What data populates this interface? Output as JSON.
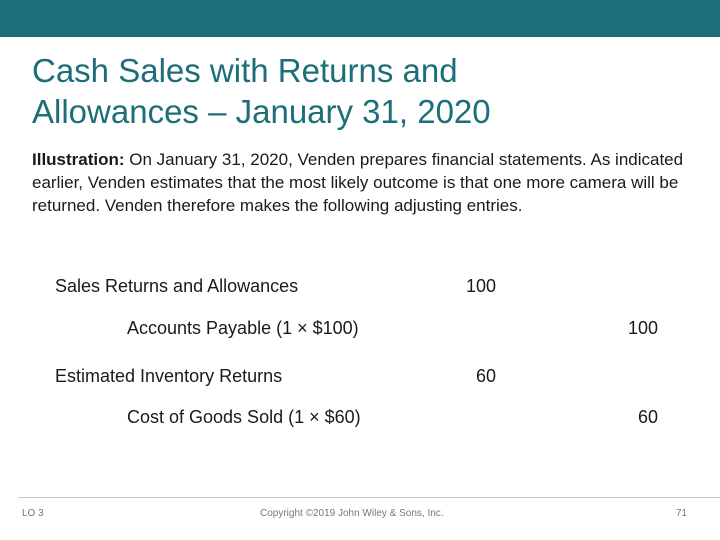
{
  "slide": {
    "title_line1": "Cash Sales with Returns and",
    "title_line2": "Allowances – January 31, 2020",
    "illustration_lead": "Illustration:",
    "illustration_text": " On January 31, 2020, Venden prepares financial statements. As indicated earlier, Venden estimates that the most likely outcome is that one more camera will be returned. Venden therefore makes the following adjusting entries."
  },
  "journal": [
    {
      "account": "Sales Returns and Allowances",
      "debit": "100",
      "credit": ""
    },
    {
      "account": "Accounts Payable (1 × $100)",
      "debit": "",
      "credit": "100"
    },
    {
      "account": "Estimated Inventory Returns",
      "debit": "60",
      "credit": ""
    },
    {
      "account": "Cost of Goods Sold (1 × $60)",
      "debit": "",
      "credit": "60"
    }
  ],
  "footer": {
    "lo": "LO 3",
    "copyright": "Copyright ©2019 John Wiley & Sons, Inc.",
    "page": "71"
  },
  "colors": {
    "accent": "#1c6e78"
  }
}
